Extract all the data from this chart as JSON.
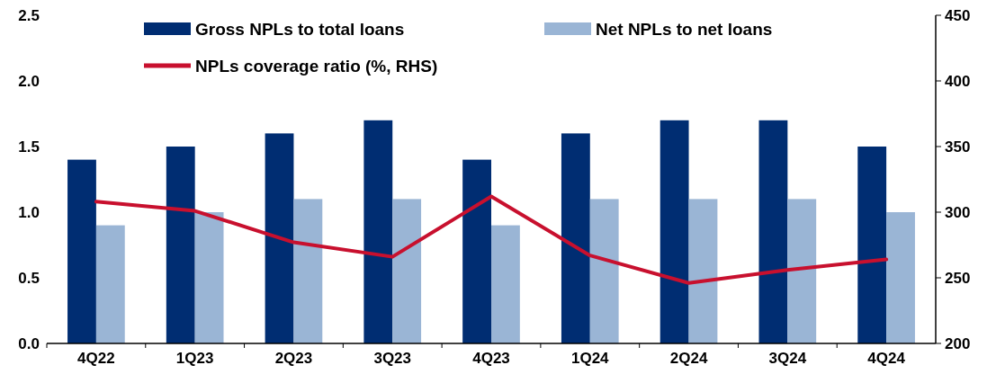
{
  "chart_data": {
    "type": "bar",
    "categories": [
      "4Q22",
      "1Q23",
      "2Q23",
      "3Q23",
      "4Q23",
      "1Q24",
      "2Q24",
      "3Q24",
      "4Q24"
    ],
    "series": [
      {
        "name": "Gross NPLs to total loans",
        "color": "#002d72",
        "values": [
          1.4,
          1.5,
          1.6,
          1.7,
          1.4,
          1.6,
          1.7,
          1.7,
          1.5
        ]
      },
      {
        "name": "Net NPLs to net loans",
        "color": "#9ab5d5",
        "values": [
          0.9,
          1.0,
          1.1,
          1.1,
          0.9,
          1.1,
          1.1,
          1.1,
          1.0
        ]
      },
      {
        "name": "NPLs coverage ratio (%, RHS)",
        "type": "line",
        "axis": "y2",
        "color": "#c8102e",
        "values": [
          308,
          301,
          277,
          266,
          312,
          267,
          246,
          256,
          264
        ]
      }
    ],
    "ylim": [
      0,
      2.5
    ],
    "yticks": [
      {
        "value": 0,
        "label": "0.0"
      },
      {
        "value": 0.5,
        "label": "0.5"
      },
      {
        "value": 1,
        "label": "1.0"
      },
      {
        "value": 1.5,
        "label": "1.5"
      },
      {
        "value": 2,
        "label": "2.0"
      },
      {
        "value": 2.5,
        "label": "2.5"
      }
    ],
    "y2lim": [
      200,
      450
    ],
    "y2ticks": [
      200,
      250,
      300,
      350,
      400,
      450
    ],
    "grid": false,
    "legend": "top",
    "marker": "none",
    "line_style": "solid"
  }
}
